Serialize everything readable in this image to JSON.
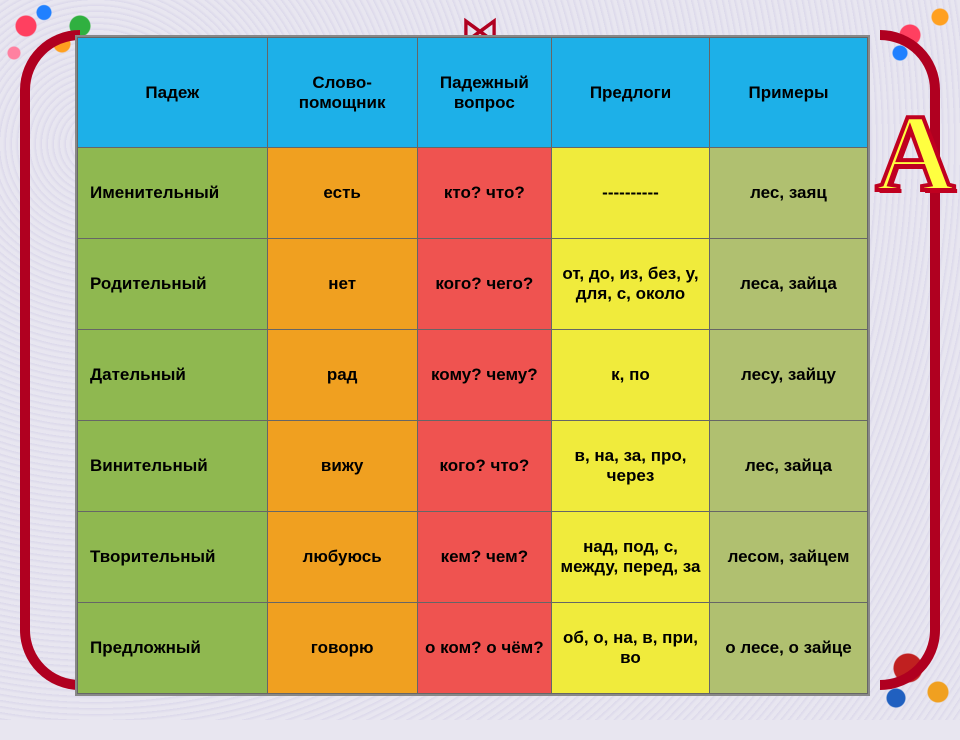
{
  "colors": {
    "header_bg": "#1db0e8",
    "col_case_bg": "#8fb850",
    "col_helper_bg": "#f0a020",
    "col_question_bg": "#ef5350",
    "col_prep_bg": "#f0eb3c",
    "col_example_bg": "#b0c070",
    "border": "#666666",
    "text": "#000000"
  },
  "fonts": {
    "header_size_pt": 13,
    "body_size_pt": 13,
    "family": "Arial"
  },
  "table": {
    "type": "table",
    "headers": {
      "case": "Падеж",
      "helper": "Слово-помощник",
      "question": "Падежный вопрос",
      "prep": "Предлоги",
      "example": "Примеры"
    },
    "rows": [
      {
        "case": "Именительный",
        "helper": "есть",
        "question": "кто? что?",
        "prep": "----------",
        "example": "лес,  заяц"
      },
      {
        "case": "Родительный",
        "helper": "нет",
        "question": "кого? чего?",
        "prep": "от, до, из, без, у, для, с, около",
        "example": "леса, зайца"
      },
      {
        "case": "Дательный",
        "helper": "рад",
        "question": "кому? чему?",
        "prep": "к, по",
        "example": "лесу, зайцу"
      },
      {
        "case": "Винительный",
        "helper": "вижу",
        "question": "кого? что?",
        "prep": "в, на, за, про, через",
        "example": "лес, зайца"
      },
      {
        "case": "Творительный",
        "helper": "любуюсь",
        "question": "кем? чем?",
        "prep": "над, под, с, между, перед, за",
        "example": "лесом, зайцем"
      },
      {
        "case": "Предложный",
        "helper": "говорю",
        "question": "о ком? о чём?",
        "prep": "об, о, на, в, при, во",
        "example": "о лесе, о зайце"
      }
    ]
  }
}
